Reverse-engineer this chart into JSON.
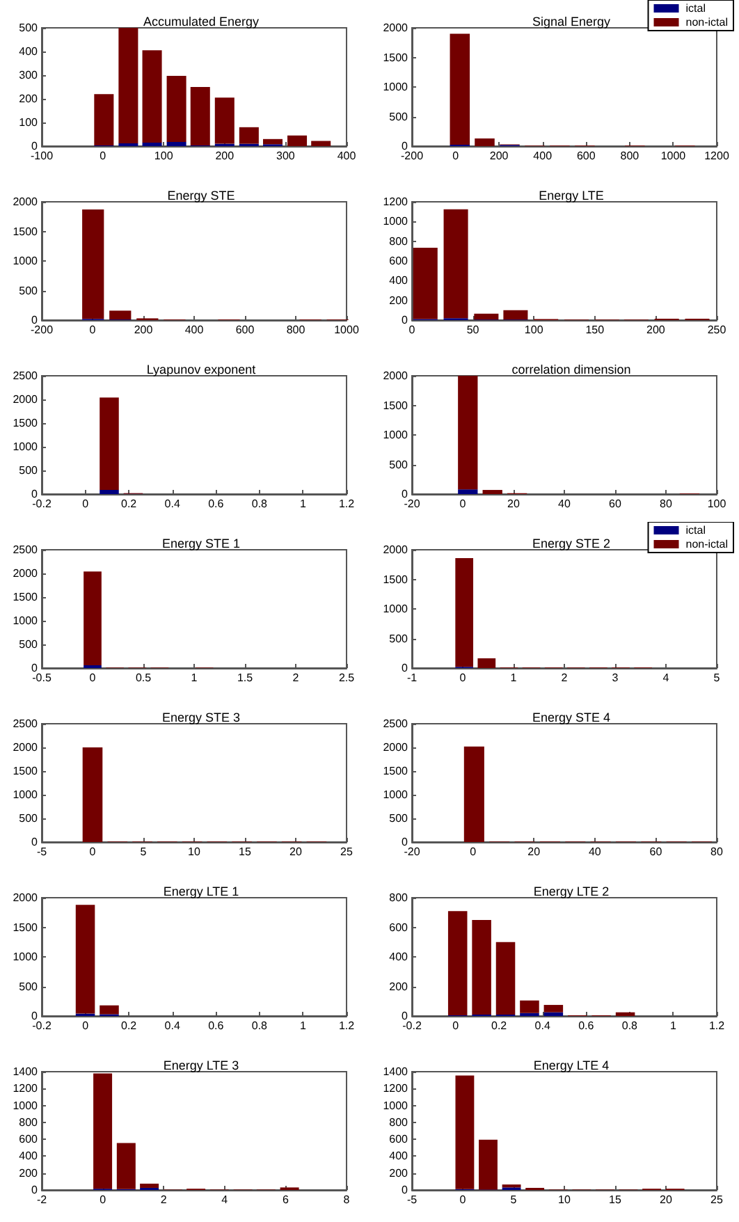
{
  "chart_data": [
    {
      "type": "bar",
      "title": "Accumulated Energy",
      "stacked": true,
      "x": [
        2,
        42,
        81,
        121,
        160,
        200,
        240,
        279,
        319,
        358
      ],
      "xlim": [
        -100,
        400
      ],
      "xticks": [
        -100,
        0,
        100,
        200,
        300,
        400
      ],
      "ylim": [
        0,
        500
      ],
      "yticks": [
        0,
        100,
        200,
        300,
        400,
        500
      ],
      "series": [
        {
          "color": "#000080",
          "values": [
            3,
            12,
            15,
            18,
            3,
            10,
            10,
            8,
            0,
            0
          ]
        },
        {
          "color": "#730000",
          "values": [
            217,
            488,
            390,
            279,
            247,
            195,
            70,
            22,
            45,
            22
          ]
        }
      ]
    },
    {
      "type": "bar",
      "title": "Signal Energy",
      "stacked": true,
      "legend": "top right",
      "x": [
        20,
        134,
        249,
        364,
        479,
        594,
        709,
        824,
        939,
        1054
      ],
      "xlim": [
        -200,
        1200
      ],
      "xticks": [
        -200,
        0,
        200,
        400,
        600,
        800,
        1000,
        1200
      ],
      "ylim": [
        0,
        2000
      ],
      "yticks": [
        0,
        500,
        1000,
        1500,
        2000
      ],
      "series": [
        {
          "name": "ictal",
          "color": "#000080",
          "values": [
            25,
            0,
            20,
            0,
            0,
            0,
            0,
            0,
            0,
            0
          ]
        },
        {
          "name": "non-ictal",
          "color": "#730000",
          "values": [
            1875,
            130,
            10,
            10,
            10,
            10,
            0,
            10,
            0,
            10
          ]
        }
      ]
    },
    {
      "type": "bar",
      "title": "Energy STE",
      "stacked": true,
      "x": [
        2,
        109,
        216,
        323,
        430,
        537,
        644,
        751,
        858,
        965
      ],
      "xlim": [
        -200,
        1000
      ],
      "xticks": [
        -200,
        0,
        200,
        400,
        600,
        800,
        1000
      ],
      "ylim": [
        0,
        2000
      ],
      "yticks": [
        0,
        500,
        1000,
        1500,
        2000
      ],
      "series": [
        {
          "color": "#000080",
          "values": [
            20,
            10,
            0,
            0,
            0,
            0,
            0,
            0,
            0,
            0
          ]
        },
        {
          "color": "#730000",
          "values": [
            1850,
            150,
            30,
            10,
            0,
            10,
            0,
            0,
            10,
            10
          ]
        }
      ]
    },
    {
      "type": "bar",
      "title": "Energy LTE",
      "stacked": true,
      "x": [
        11,
        36,
        61,
        85,
        110,
        135,
        160,
        184,
        209,
        234
      ],
      "xlim": [
        0,
        250
      ],
      "xticks": [
        0,
        50,
        100,
        150,
        200,
        250
      ],
      "ylim": [
        0,
        1200
      ],
      "yticks": [
        0,
        200,
        400,
        600,
        800,
        1000,
        1200
      ],
      "series": [
        {
          "color": "#000080",
          "values": [
            10,
            20,
            5,
            5,
            0,
            0,
            0,
            0,
            0,
            0
          ]
        },
        {
          "color": "#730000",
          "values": [
            725,
            1105,
            60,
            95,
            10,
            5,
            5,
            5,
            15,
            15
          ]
        }
      ]
    },
    {
      "type": "bar",
      "title": "Lyapunov exponent",
      "stacked": true,
      "x": [
        0.11,
        0.22
      ],
      "xlim": [
        -0.2,
        1.2
      ],
      "xticks": [
        -0.2,
        0,
        0.2,
        0.4,
        0.6,
        0.8,
        1,
        1.2
      ],
      "ylim": [
        0,
        2500
      ],
      "yticks": [
        0,
        500,
        1000,
        1500,
        2000,
        2500
      ],
      "series": [
        {
          "color": "#000080",
          "values": [
            90,
            5
          ]
        },
        {
          "color": "#730000",
          "values": [
            1950,
            15
          ]
        }
      ]
    },
    {
      "type": "bar",
      "title": "correlation dimension",
      "stacked": true,
      "x": [
        2,
        11.7,
        21.4,
        31.1,
        40.8,
        50.5,
        60.2,
        69.9,
        79.6,
        89.3
      ],
      "xlim": [
        -20,
        100
      ],
      "xticks": [
        -20,
        0,
        20,
        40,
        60,
        80,
        100
      ],
      "ylim": [
        0,
        2000
      ],
      "yticks": [
        0,
        500,
        1000,
        1500,
        2000
      ],
      "series": [
        {
          "color": "#000080",
          "values": [
            80,
            0,
            0,
            0,
            0,
            0,
            0,
            0,
            0,
            0
          ]
        },
        {
          "color": "#730000",
          "values": [
            1920,
            70,
            15,
            0,
            0,
            0,
            0,
            0,
            0,
            10
          ]
        }
      ]
    },
    {
      "type": "bar",
      "title": "Energy STE 1",
      "stacked": true,
      "x": [
        0,
        0.22,
        0.44,
        0.66,
        0.88,
        1.1
      ],
      "xlim": [
        -0.5,
        2.5
      ],
      "xticks": [
        -0.5,
        0,
        0.5,
        1,
        1.5,
        2,
        2.5
      ],
      "ylim": [
        0,
        2500
      ],
      "yticks": [
        0,
        500,
        1000,
        1500,
        2000,
        2500
      ],
      "series": [
        {
          "color": "#000080",
          "values": [
            60,
            0,
            0,
            0,
            0,
            0
          ]
        },
        {
          "color": "#730000",
          "values": [
            1980,
            10,
            10,
            10,
            0,
            10
          ]
        }
      ]
    },
    {
      "type": "bar",
      "title": "Energy STE 2",
      "stacked": true,
      "legend": "top right",
      "x": [
        0.03,
        0.47,
        0.91,
        1.35,
        1.79,
        2.23,
        2.67,
        3.11,
        3.55
      ],
      "xlim": [
        -1,
        5
      ],
      "xticks": [
        -1,
        0,
        1,
        2,
        3,
        4,
        5
      ],
      "ylim": [
        0,
        2000
      ],
      "yticks": [
        0,
        500,
        1000,
        1500,
        2000
      ],
      "series": [
        {
          "name": "ictal",
          "color": "#000080",
          "values": [
            20,
            0,
            0,
            0,
            0,
            0,
            0,
            0,
            0
          ]
        },
        {
          "name": "non-ictal",
          "color": "#730000",
          "values": [
            1840,
            165,
            10,
            10,
            10,
            10,
            10,
            10,
            10
          ]
        }
      ]
    },
    {
      "type": "bar",
      "title": "Energy STE 3",
      "stacked": true,
      "x": [
        0,
        2.45,
        4.9,
        7.35,
        9.8,
        12.25,
        14.7,
        17.15,
        19.6,
        22.05
      ],
      "xlim": [
        -5,
        25
      ],
      "xticks": [
        -5,
        0,
        5,
        10,
        15,
        20,
        25
      ],
      "ylim": [
        0,
        2500
      ],
      "yticks": [
        0,
        500,
        1000,
        1500,
        2000,
        2500
      ],
      "series": [
        {
          "color": "#000080",
          "values": [
            0,
            0,
            0,
            0,
            0,
            0,
            0,
            0,
            0,
            0
          ]
        },
        {
          "color": "#730000",
          "values": [
            2000,
            10,
            10,
            10,
            10,
            10,
            10,
            10,
            10,
            10
          ]
        }
      ]
    },
    {
      "type": "bar",
      "title": "Energy STE 4",
      "stacked": true,
      "x": [
        0.4,
        8.7,
        17,
        25.3,
        33.6,
        41.9,
        50.2,
        58.5,
        66.8,
        75.1
      ],
      "xlim": [
        -20,
        80
      ],
      "xticks": [
        -20,
        0,
        20,
        40,
        60,
        80
      ],
      "ylim": [
        0,
        2500
      ],
      "yticks": [
        0,
        500,
        1000,
        1500,
        2000,
        2500
      ],
      "series": [
        {
          "color": "#000080",
          "values": [
            0,
            0,
            0,
            0,
            0,
            0,
            0,
            0,
            0,
            0
          ]
        },
        {
          "color": "#730000",
          "values": [
            2020,
            10,
            10,
            10,
            10,
            10,
            10,
            10,
            10,
            10
          ]
        }
      ]
    },
    {
      "type": "bar",
      "title": "Energy LTE 1",
      "stacked": true,
      "x": [
        0,
        0.11
      ],
      "xlim": [
        -0.2,
        1.2
      ],
      "xticks": [
        -0.2,
        0,
        0.2,
        0.4,
        0.6,
        0.8,
        1,
        1.2
      ],
      "ylim": [
        0,
        2000
      ],
      "yticks": [
        0,
        500,
        1000,
        1500,
        2000
      ],
      "series": [
        {
          "color": "#000080",
          "values": [
            40,
            30
          ]
        },
        {
          "color": "#730000",
          "values": [
            1840,
            150
          ]
        }
      ]
    },
    {
      "type": "bar",
      "title": "Energy LTE 2",
      "stacked": true,
      "x": [
        0.01,
        0.12,
        0.23,
        0.34,
        0.45,
        0.56,
        0.67,
        0.78
      ],
      "xlim": [
        -0.2,
        1.2
      ],
      "xticks": [
        -0.2,
        0,
        0.2,
        0.4,
        0.6,
        0.8,
        1,
        1.2
      ],
      "ylim": [
        0,
        800
      ],
      "yticks": [
        0,
        200,
        400,
        600,
        800
      ],
      "series": [
        {
          "color": "#000080",
          "values": [
            5,
            10,
            10,
            20,
            25,
            0,
            0,
            0
          ]
        },
        {
          "color": "#730000",
          "values": [
            705,
            640,
            490,
            85,
            50,
            5,
            5,
            25
          ]
        }
      ]
    },
    {
      "type": "bar",
      "title": "Energy LTE 3",
      "stacked": true,
      "x": [
        0,
        0.77,
        1.53,
        2.3,
        3.06,
        3.83,
        4.6,
        5.36,
        6.13
      ],
      "xlim": [
        -2,
        8
      ],
      "xticks": [
        -2,
        0,
        2,
        4,
        6,
        8
      ],
      "ylim": [
        0,
        1400
      ],
      "yticks": [
        0,
        200,
        400,
        600,
        800,
        1000,
        1200,
        1400
      ],
      "series": [
        {
          "color": "#000080",
          "values": [
            15,
            10,
            25,
            0,
            0,
            0,
            0,
            0,
            0
          ]
        },
        {
          "color": "#730000",
          "values": [
            1365,
            545,
            50,
            5,
            15,
            5,
            5,
            5,
            30
          ]
        }
      ]
    },
    {
      "type": "bar",
      "title": "Energy LTE 4",
      "stacked": true,
      "x": [
        0.2,
        2.5,
        4.8,
        7.1,
        9.4,
        11.7,
        14,
        16.3,
        18.6,
        20.9
      ],
      "xlim": [
        -5,
        25
      ],
      "xticks": [
        -5,
        0,
        5,
        10,
        15,
        20,
        25
      ],
      "ylim": [
        0,
        1400
      ],
      "yticks": [
        0,
        200,
        400,
        600,
        800,
        1000,
        1200,
        1400
      ],
      "series": [
        {
          "color": "#000080",
          "values": [
            10,
            5,
            30,
            0,
            0,
            0,
            0,
            0,
            0,
            0
          ]
        },
        {
          "color": "#730000",
          "values": [
            1345,
            590,
            35,
            25,
            5,
            5,
            5,
            5,
            15,
            15
          ]
        }
      ]
    }
  ]
}
